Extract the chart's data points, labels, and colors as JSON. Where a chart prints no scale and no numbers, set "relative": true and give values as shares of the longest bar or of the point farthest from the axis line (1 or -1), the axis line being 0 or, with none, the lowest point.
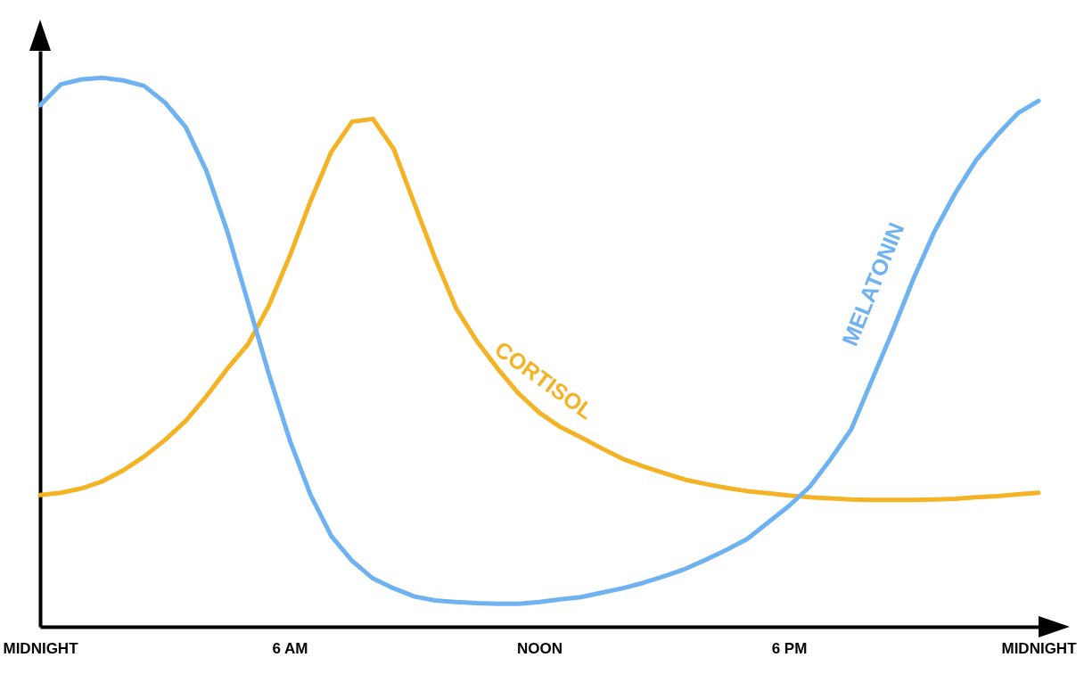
{
  "chart_data": {
    "type": "line",
    "relative": true,
    "legend": false,
    "grid": false,
    "tick_labels": "x",
    "marker": "none",
    "line_style": "solid",
    "categories": [
      "MIDNIGHT",
      null,
      null,
      null,
      null,
      null,
      null,
      null,
      null,
      null,
      null,
      null,
      "6 AM",
      null,
      null,
      null,
      null,
      null,
      null,
      null,
      null,
      null,
      null,
      null,
      "NOON",
      null,
      null,
      null,
      null,
      null,
      null,
      null,
      null,
      null,
      null,
      null,
      "6 PM",
      null,
      null,
      null,
      null,
      null,
      null,
      null,
      null,
      null,
      null,
      null,
      "MIDNIGHT"
    ],
    "series": [
      {
        "name": "CORTISOL",
        "color": "#f4b324",
        "values": [
          0.24,
          0.244,
          0.252,
          0.265,
          0.285,
          0.31,
          0.34,
          0.375,
          0.42,
          0.47,
          0.515,
          0.585,
          0.675,
          0.775,
          0.865,
          0.92,
          0.925,
          0.87,
          0.77,
          0.67,
          0.58,
          0.52,
          0.47,
          0.425,
          0.39,
          0.364,
          0.345,
          0.325,
          0.306,
          0.292,
          0.28,
          0.268,
          0.26,
          0.253,
          0.247,
          0.243,
          0.239,
          0.236,
          0.234,
          0.232,
          0.231,
          0.231,
          0.231,
          0.232,
          0.233,
          0.236,
          0.238,
          0.241,
          0.244
        ]
      },
      {
        "name": "MELATONIN",
        "color": "#6eb2f2",
        "values": [
          0.95,
          0.988,
          0.997,
          1,
          0.995,
          0.985,
          0.955,
          0.91,
          0.83,
          0.72,
          0.59,
          0.46,
          0.34,
          0.24,
          0.165,
          0.12,
          0.088,
          0.07,
          0.055,
          0.048,
          0.045,
          0.043,
          0.042,
          0.042,
          0.045,
          0.05,
          0.054,
          0.062,
          0.07,
          0.08,
          0.092,
          0.105,
          0.122,
          0.14,
          0.16,
          0.19,
          0.22,
          0.255,
          0.305,
          0.36,
          0.45,
          0.54,
          0.635,
          0.72,
          0.79,
          0.85,
          0.895,
          0.935,
          0.958
        ]
      }
    ]
  }
}
